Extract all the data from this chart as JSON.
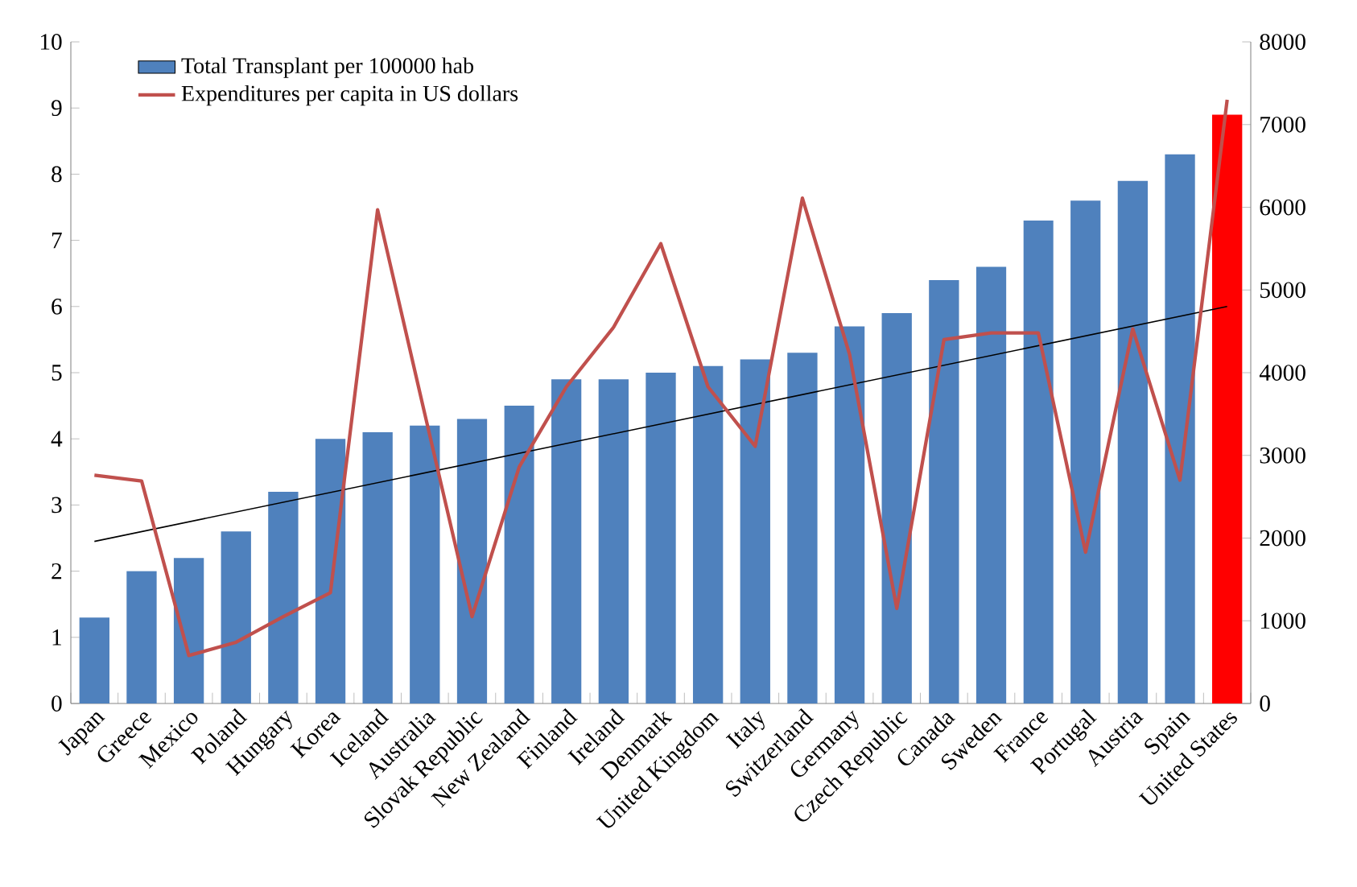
{
  "chart_data": {
    "type": "bar",
    "categories": [
      "Japan",
      "Greece",
      "Mexico",
      "Poland",
      "Hungary",
      "Korea",
      "Iceland",
      "Australia",
      "Slovak Republic",
      "New Zealand",
      "Finland",
      "Ireland",
      "Denmark",
      "United Kingdom",
      "Italy",
      "Switzerland",
      "Germany",
      "Czech Republic",
      "Canada",
      "Sweden",
      "France",
      "Portugal",
      "Austria",
      "Spain",
      "United States"
    ],
    "series": [
      {
        "name": "Total Transplant per 100000 hab",
        "color": "#4f81bd",
        "colors": [
          "#4f81bd",
          "#4f81bd",
          "#4f81bd",
          "#4f81bd",
          "#4f81bd",
          "#4f81bd",
          "#4f81bd",
          "#4f81bd",
          "#4f81bd",
          "#4f81bd",
          "#4f81bd",
          "#4f81bd",
          "#4f81bd",
          "#4f81bd",
          "#4f81bd",
          "#4f81bd",
          "#4f81bd",
          "#4f81bd",
          "#4f81bd",
          "#4f81bd",
          "#4f81bd",
          "#4f81bd",
          "#4f81bd",
          "#4f81bd",
          "#ff0000"
        ],
        "values": [
          1.3,
          2.0,
          2.2,
          2.6,
          3.2,
          4.0,
          4.1,
          4.2,
          4.3,
          4.5,
          4.9,
          4.9,
          5.0,
          5.1,
          5.2,
          5.3,
          5.7,
          5.9,
          6.4,
          6.6,
          7.3,
          7.6,
          7.9,
          8.3,
          8.9
        ]
      },
      {
        "name": "Expenditures per capita in US dollars",
        "type": "line",
        "axis": "y2",
        "color": "#c0504d",
        "values": [
          2760,
          2690,
          580,
          740,
          1050,
          1340,
          5970,
          3500,
          1050,
          2860,
          3830,
          4550,
          5560,
          3830,
          3110,
          6110,
          4220,
          1150,
          4400,
          4480,
          4480,
          1830,
          4530,
          2700,
          7300
        ]
      },
      {
        "type": "line",
        "color": "#000000",
        "x": [
          "Japan",
          "United States"
        ],
        "values": [
          2.45,
          6.0
        ]
      }
    ],
    "ylim": [
      0,
      10
    ],
    "yticks": [
      0,
      1,
      2,
      3,
      4,
      5,
      6,
      7,
      8,
      9,
      10
    ],
    "y2lim": [
      0,
      8000
    ],
    "y2ticks": [
      0,
      1000,
      2000,
      3000,
      4000,
      5000,
      6000,
      7000,
      8000
    ],
    "legend": "top left",
    "grid": false
  }
}
